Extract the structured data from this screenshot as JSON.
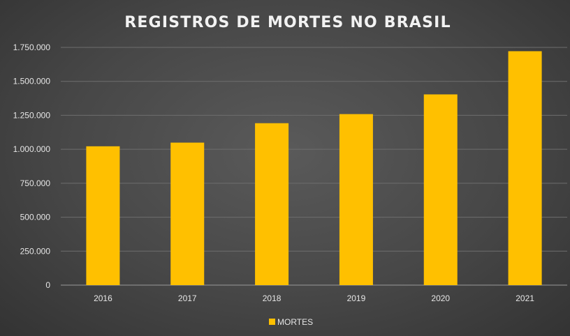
{
  "chart_data": {
    "type": "bar",
    "title": "REGISTROS DE MORTES NO BRASIL",
    "categories": [
      "2016",
      "2017",
      "2018",
      "2019",
      "2020",
      "2021"
    ],
    "series": [
      {
        "name": "MORTES",
        "values": [
          1022000,
          1049000,
          1192000,
          1259000,
          1404000,
          1722000
        ]
      }
    ],
    "ylim": [
      0,
      1750000
    ],
    "yticks": [
      0,
      250000,
      500000,
      750000,
      1000000,
      1250000,
      1500000,
      1750000
    ],
    "ytick_labels": [
      "0",
      "250.000",
      "500.000",
      "750.000",
      "1.000.000",
      "1.250.000",
      "1.500.000",
      "1.750.000"
    ],
    "grid": true,
    "legend": "bottom",
    "colors": {
      "bar": "#FFC000",
      "grid": "#6e6e6e",
      "axis": "#9a9a9a",
      "background": "#474747"
    }
  }
}
